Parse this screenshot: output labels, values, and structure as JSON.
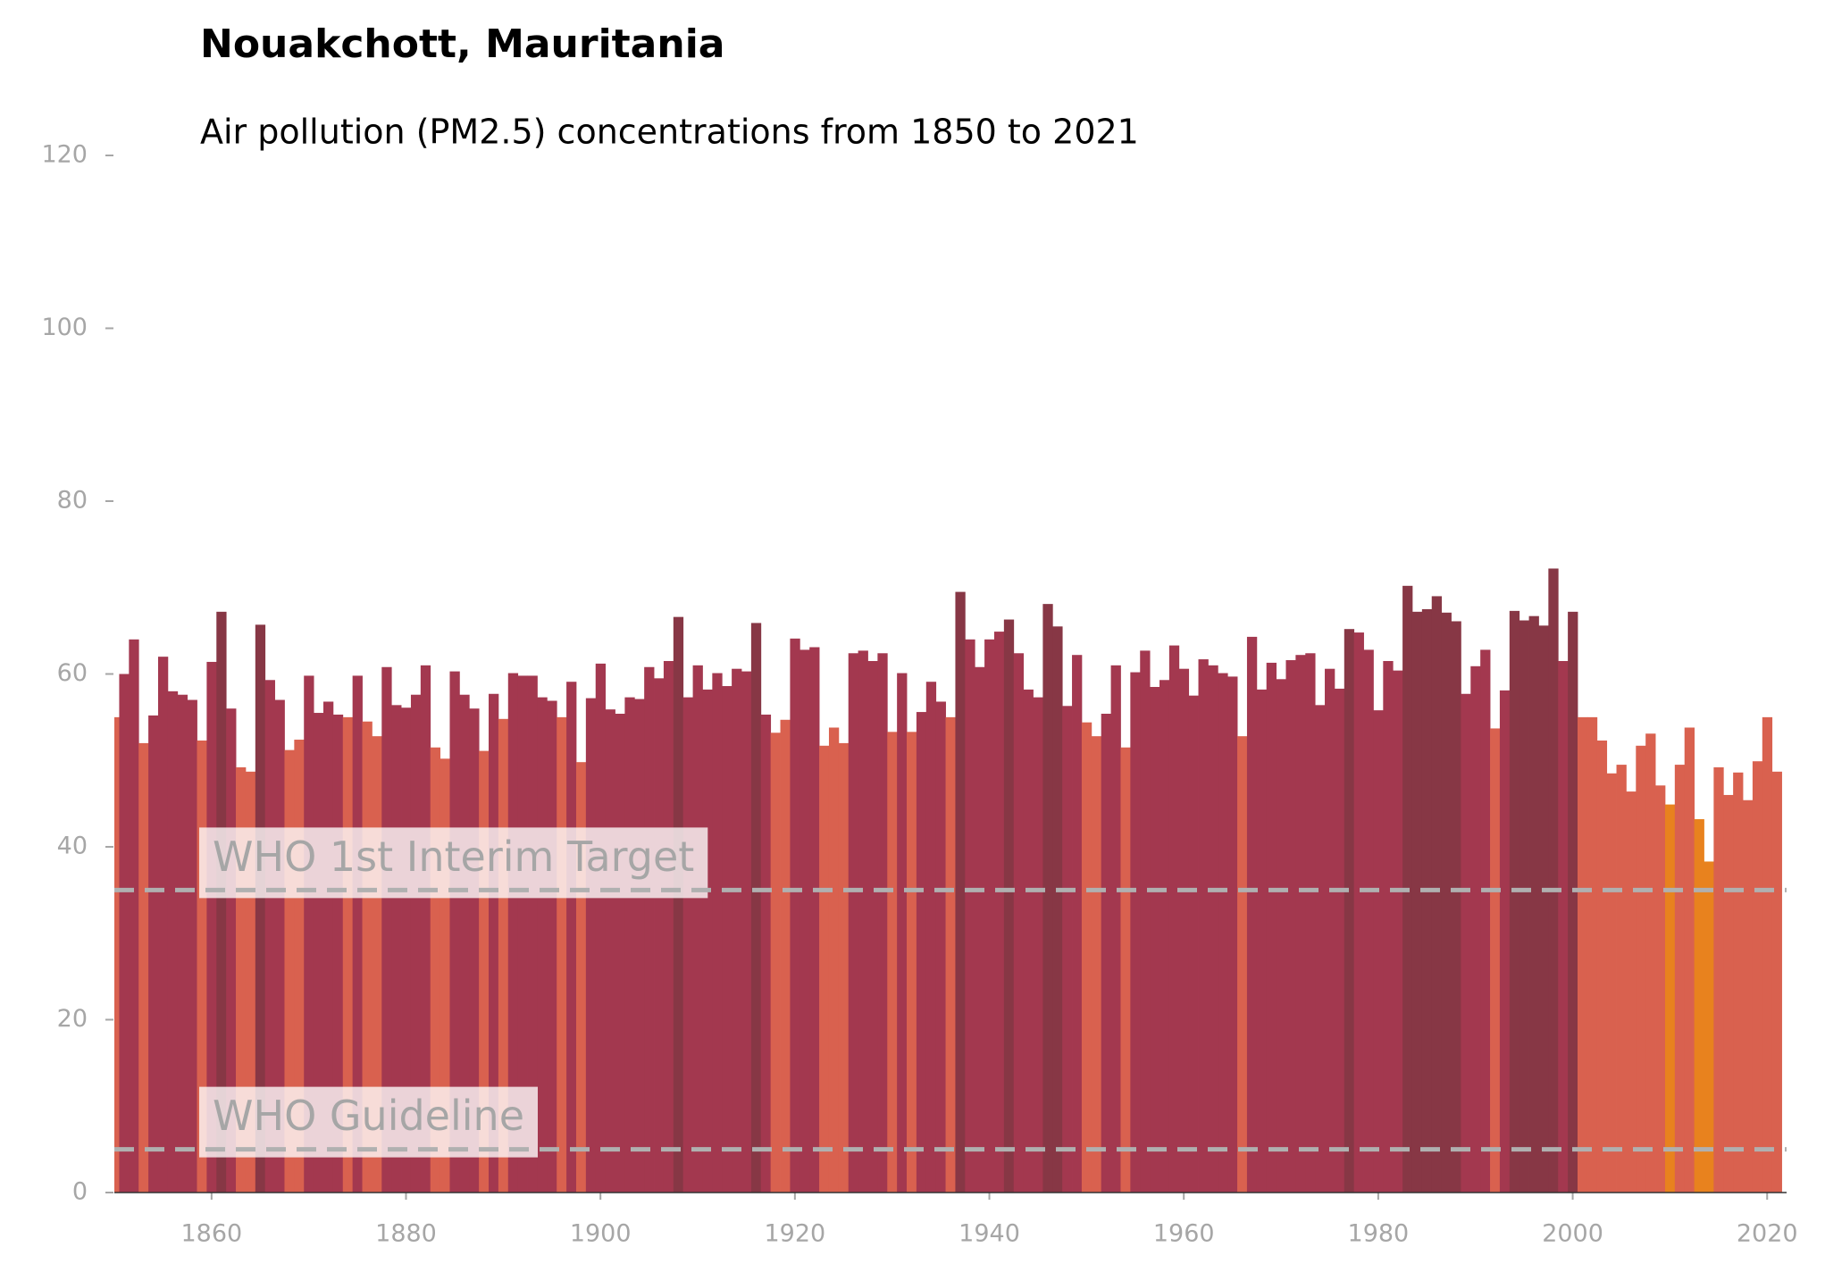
{
  "chart_data": {
    "type": "bar",
    "title": "Nouakchott, Mauritania",
    "subtitle": "Air pollution (PM2.5) concentrations from 1850 to 2021",
    "x": [
      1850,
      1851,
      1852,
      1853,
      1854,
      1855,
      1856,
      1857,
      1858,
      1859,
      1860,
      1861,
      1862,
      1863,
      1864,
      1865,
      1866,
      1867,
      1868,
      1869,
      1870,
      1871,
      1872,
      1873,
      1874,
      1875,
      1876,
      1877,
      1878,
      1879,
      1880,
      1881,
      1882,
      1883,
      1884,
      1885,
      1886,
      1887,
      1888,
      1889,
      1890,
      1891,
      1892,
      1893,
      1894,
      1895,
      1896,
      1897,
      1898,
      1899,
      1900,
      1901,
      1902,
      1903,
      1904,
      1905,
      1906,
      1907,
      1908,
      1909,
      1910,
      1911,
      1912,
      1913,
      1914,
      1915,
      1916,
      1917,
      1918,
      1919,
      1920,
      1921,
      1922,
      1923,
      1924,
      1925,
      1926,
      1927,
      1928,
      1929,
      1930,
      1931,
      1932,
      1933,
      1934,
      1935,
      1936,
      1937,
      1938,
      1939,
      1940,
      1941,
      1942,
      1943,
      1944,
      1945,
      1946,
      1947,
      1948,
      1949,
      1950,
      1951,
      1952,
      1953,
      1954,
      1955,
      1956,
      1957,
      1958,
      1959,
      1960,
      1961,
      1962,
      1963,
      1964,
      1965,
      1966,
      1967,
      1968,
      1969,
      1970,
      1971,
      1972,
      1973,
      1974,
      1975,
      1976,
      1977,
      1978,
      1979,
      1980,
      1981,
      1982,
      1983,
      1984,
      1985,
      1986,
      1987,
      1988,
      1989,
      1990,
      1991,
      1992,
      1993,
      1994,
      1995,
      1996,
      1997,
      1998,
      1999,
      2000,
      2001,
      2002,
      2003,
      2004,
      2005,
      2006,
      2007,
      2008,
      2009,
      2010,
      2011,
      2012,
      2013,
      2014,
      2015,
      2016,
      2017,
      2018,
      2019,
      2020,
      2021
    ],
    "values": [
      55,
      60,
      64,
      52,
      55.2,
      62,
      58,
      57.6,
      57,
      52.3,
      61.4,
      67.2,
      56,
      49.2,
      48.7,
      65.7,
      59.3,
      57,
      51.2,
      52.4,
      59.8,
      55.5,
      56.8,
      55.3,
      55,
      59.8,
      54.5,
      52.8,
      60.8,
      56.4,
      56.1,
      57.6,
      61,
      51.5,
      50.2,
      60.3,
      57.6,
      56,
      51.1,
      57.7,
      54.8,
      60.1,
      59.8,
      59.8,
      57.3,
      56.9,
      55,
      59.1,
      49.8,
      57.2,
      61.2,
      55.9,
      55.4,
      57.3,
      57.1,
      60.8,
      59.5,
      61.5,
      66.6,
      57.3,
      61,
      58.2,
      60.1,
      58.6,
      60.6,
      60.3,
      65.9,
      55.3,
      53.2,
      54.7,
      64.1,
      62.8,
      63.1,
      51.7,
      53.8,
      52,
      62.4,
      62.7,
      61.5,
      62.4,
      53.3,
      60.1,
      53.3,
      55.6,
      59.1,
      56.8,
      55,
      69.5,
      64,
      60.8,
      64,
      64.9,
      66.3,
      62.4,
      58.2,
      57.3,
      68.1,
      65.5,
      56.3,
      62.2,
      54.4,
      52.8,
      55.4,
      61,
      51.5,
      60.2,
      62.7,
      58.5,
      59.3,
      63.3,
      60.6,
      57.5,
      61.7,
      61,
      60.1,
      59.7,
      52.8,
      64.3,
      58.2,
      61.3,
      59.4,
      61.6,
      62.2,
      62.4,
      56.4,
      60.6,
      58.3,
      65.2,
      64.8,
      62.8,
      55.8,
      61.5,
      60.4,
      70.2,
      67.2,
      67.5,
      69,
      67.1,
      66.1,
      57.7,
      60.9,
      62.8,
      53.7,
      58.1,
      67.3,
      66.2,
      66.7,
      65.6,
      72.2,
      61.5,
      67.2,
      55,
      55,
      52.3,
      48.5,
      49.5,
      46.4,
      51.7,
      53.1,
      47.1,
      44.9,
      49.5,
      53.8,
      43.2,
      38.3,
      49.2,
      46,
      48.6,
      45.4,
      49.9,
      55,
      48.7
    ],
    "colors": [
      "#d9614f",
      "#a3384f",
      "#a3384f",
      "#d9614f",
      "#a3384f",
      "#a3384f",
      "#a3384f",
      "#a3384f",
      "#a3384f",
      "#d9614f",
      "#a3384f",
      "#873745",
      "#a3384f",
      "#d9614f",
      "#d9614f",
      "#873745",
      "#a3384f",
      "#a3384f",
      "#d9614f",
      "#d9614f",
      "#a3384f",
      "#a3384f",
      "#a3384f",
      "#a3384f",
      "#d9614f",
      "#a3384f",
      "#d9614f",
      "#d9614f",
      "#a3384f",
      "#a3384f",
      "#a3384f",
      "#a3384f",
      "#a3384f",
      "#d9614f",
      "#d9614f",
      "#a3384f",
      "#a3384f",
      "#a3384f",
      "#d9614f",
      "#a3384f",
      "#d9614f",
      "#a3384f",
      "#a3384f",
      "#a3384f",
      "#a3384f",
      "#a3384f",
      "#d9614f",
      "#a3384f",
      "#d9614f",
      "#a3384f",
      "#a3384f",
      "#a3384f",
      "#a3384f",
      "#a3384f",
      "#a3384f",
      "#a3384f",
      "#a3384f",
      "#a3384f",
      "#873745",
      "#a3384f",
      "#a3384f",
      "#a3384f",
      "#a3384f",
      "#a3384f",
      "#a3384f",
      "#a3384f",
      "#873745",
      "#a3384f",
      "#d9614f",
      "#d9614f",
      "#a3384f",
      "#a3384f",
      "#a3384f",
      "#d9614f",
      "#d9614f",
      "#d9614f",
      "#a3384f",
      "#a3384f",
      "#a3384f",
      "#a3384f",
      "#d9614f",
      "#a3384f",
      "#d9614f",
      "#a3384f",
      "#a3384f",
      "#a3384f",
      "#d9614f",
      "#873745",
      "#a3384f",
      "#a3384f",
      "#a3384f",
      "#a3384f",
      "#873745",
      "#a3384f",
      "#a3384f",
      "#a3384f",
      "#873745",
      "#873745",
      "#a3384f",
      "#a3384f",
      "#d9614f",
      "#d9614f",
      "#a3384f",
      "#a3384f",
      "#d9614f",
      "#a3384f",
      "#a3384f",
      "#a3384f",
      "#a3384f",
      "#a3384f",
      "#a3384f",
      "#a3384f",
      "#a3384f",
      "#a3384f",
      "#a3384f",
      "#a3384f",
      "#d9614f",
      "#a3384f",
      "#a3384f",
      "#a3384f",
      "#a3384f",
      "#a3384f",
      "#a3384f",
      "#a3384f",
      "#a3384f",
      "#a3384f",
      "#a3384f",
      "#873745",
      "#a3384f",
      "#a3384f",
      "#a3384f",
      "#a3384f",
      "#a3384f",
      "#873745",
      "#873745",
      "#873745",
      "#873745",
      "#873745",
      "#873745",
      "#a3384f",
      "#a3384f",
      "#a3384f",
      "#d9614f",
      "#a3384f",
      "#873745",
      "#873745",
      "#873745",
      "#873745",
      "#873745",
      "#a3384f",
      "#873745",
      "#d9614f",
      "#d9614f",
      "#d9614f",
      "#d9614f",
      "#d9614f",
      "#d9614f",
      "#d9614f",
      "#d9614f",
      "#d9614f",
      "#e8821e",
      "#d9614f",
      "#d9614f",
      "#e8821e",
      "#e8821e",
      "#d9614f",
      "#d9614f",
      "#d9614f",
      "#d9614f",
      "#d9614f",
      "#d9614f",
      "#d9614f"
    ],
    "xlim": [
      1850,
      2022
    ],
    "ylim": [
      0,
      120
    ],
    "xticks": [
      1860,
      1880,
      1900,
      1920,
      1940,
      1960,
      1980,
      2000,
      2020
    ],
    "yticks": [
      0,
      20,
      40,
      60,
      80,
      100,
      120
    ],
    "reference_lines": [
      {
        "value": 35,
        "label": "WHO 1st Interim Target"
      },
      {
        "value": 5,
        "label": "WHO Guideline"
      }
    ]
  }
}
